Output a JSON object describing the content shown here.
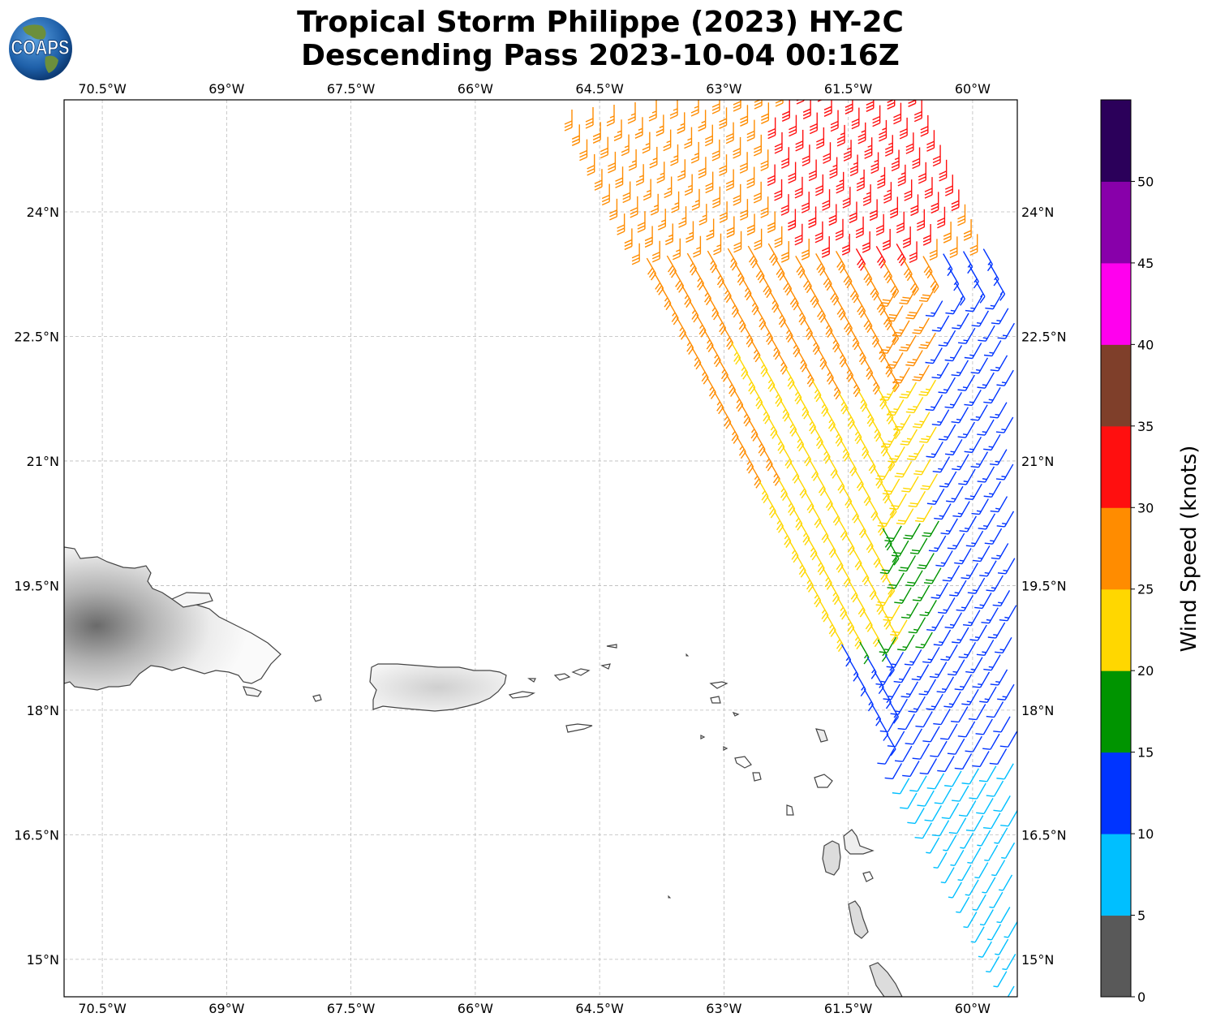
{
  "title_line1": "Tropical Storm Philippe (2023) HY-2C",
  "title_line2": "Descending Pass 2023-10-04 00:16Z",
  "logo_text": "COAPS",
  "map": {
    "lon_range": [
      -71.0,
      -59.5
    ],
    "lat_range": [
      14.5,
      25.3
    ],
    "grid": true,
    "lon_ticks": [
      -70.5,
      -69,
      -67.5,
      -66,
      -64.5,
      -63,
      -61.5,
      -60
    ],
    "lon_tick_labels": [
      "70.5°W",
      "69°W",
      "67.5°W",
      "66°W",
      "64.5°W",
      "63°W",
      "61.5°W",
      "60°W"
    ],
    "lat_ticks": [
      24,
      22.5,
      21,
      19.5,
      18,
      16.5,
      15
    ],
    "lat_tick_labels": [
      "24°N",
      "22.5°N",
      "21°N",
      "19.5°N",
      "18°N",
      "16.5°N",
      "15°N"
    ],
    "swath": {
      "description": "wind barbs along a descending satellite pass",
      "west_edge": [
        [
          -64.5,
          25.2
        ],
        [
          -63.5,
          22.6
        ],
        [
          -62.5,
          20.0
        ],
        [
          -61.5,
          18.2
        ],
        [
          -60.8,
          16.5
        ],
        [
          -60.0,
          15.2
        ],
        [
          -59.5,
          14.7
        ]
      ],
      "wind_regions_note": "speed increases toward storm center near 61.2°W 24.7°N"
    },
    "islands": [
      "Hispaniola",
      "Puerto Rico",
      "Virgin Islands",
      "Leeward Islands",
      "Guadeloupe",
      "Dominica"
    ]
  },
  "colorbar": {
    "label": "Wind Speed (knots)",
    "bounds": [
      0,
      5,
      10,
      15,
      20,
      25,
      30,
      35,
      40,
      45,
      50,
      55
    ],
    "tick_labels": [
      "0",
      "5",
      "10",
      "15",
      "20",
      "25",
      "30",
      "35",
      "40",
      "45",
      "50"
    ],
    "colors": [
      "#595959",
      "#00bfff",
      "#0034ff",
      "#009400",
      "#ffd700",
      "#ff8c00",
      "#ff0f0f",
      "#7f3f2a",
      "#ff00ee",
      "#8800aa",
      "#2b005a"
    ]
  }
}
